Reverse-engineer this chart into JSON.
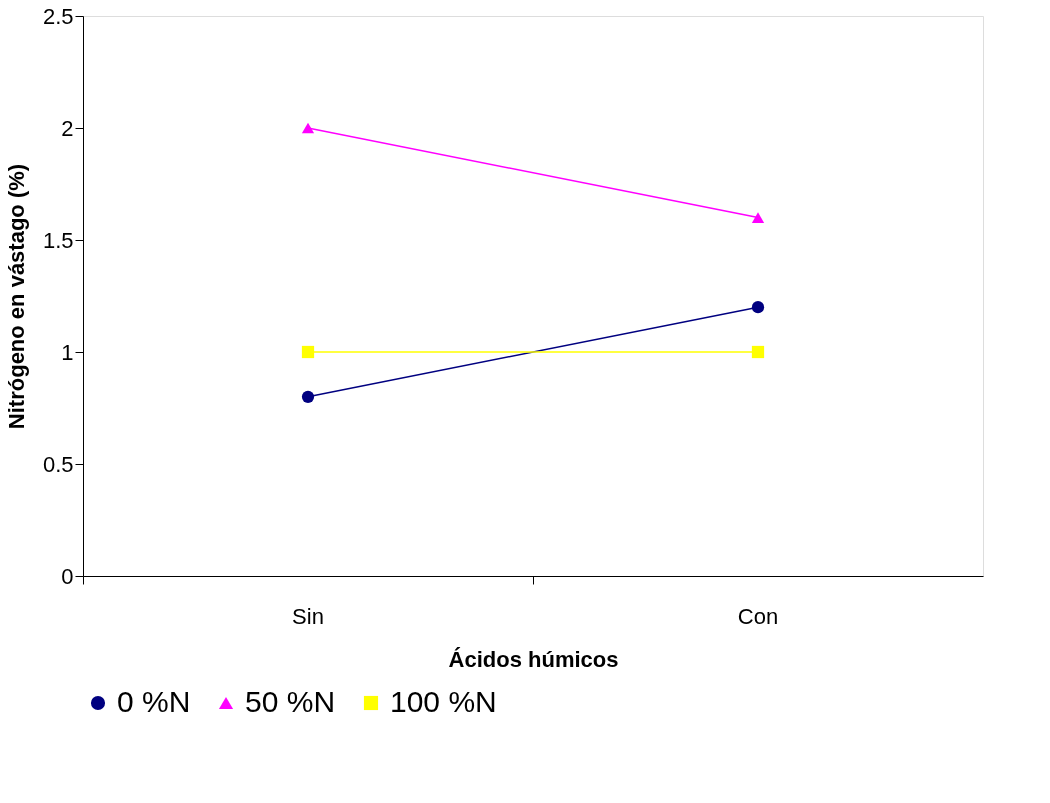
{
  "chart_data": {
    "type": "line",
    "xlabel": "Ácidos húmicos",
    "ylabel": "Nitrógeno en vástago (%)",
    "categories": [
      "Sin",
      "Con"
    ],
    "ylim": [
      0,
      2.5
    ],
    "yticks": [
      0,
      0.5,
      1,
      1.5,
      2,
      2.5
    ],
    "grid": false,
    "legend": "bottom",
    "line_style": "solid",
    "series": [
      {
        "name": "0 %N",
        "color": "#000080",
        "marker": "circle",
        "values": [
          0.8,
          1.2
        ]
      },
      {
        "name": "50 %N",
        "color": "#ff00ff",
        "marker": "triangle",
        "values": [
          2.0,
          1.6
        ]
      },
      {
        "name": "100 %N",
        "color": "#ffff00",
        "marker": "square",
        "values": [
          1.0,
          1.0
        ]
      }
    ]
  }
}
